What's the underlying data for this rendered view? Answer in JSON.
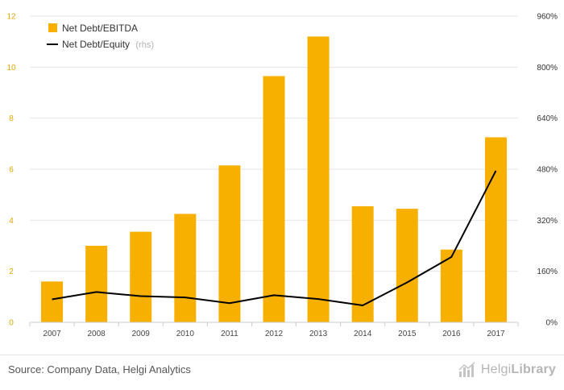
{
  "chart_data": {
    "type": "bar",
    "categories": [
      "2007",
      "2008",
      "2009",
      "2010",
      "2011",
      "2012",
      "2013",
      "2014",
      "2015",
      "2016",
      "2017"
    ],
    "series": [
      {
        "name": "Net Debt/EBITDA",
        "type": "bar",
        "axis": "left",
        "color": "#f7b000",
        "values": [
          1.6,
          3.0,
          3.55,
          4.25,
          6.15,
          9.65,
          11.2,
          4.55,
          4.45,
          2.85,
          7.25
        ]
      },
      {
        "name": "Net Debt/Equity",
        "type": "line",
        "axis": "right",
        "color": "#000000",
        "values": [
          72,
          95,
          82,
          78,
          60,
          85,
          73,
          53,
          125,
          205,
          475
        ]
      }
    ],
    "left_axis": {
      "ticks": [
        "0",
        "2",
        "4",
        "6",
        "8",
        "10",
        "12"
      ],
      "ylim": [
        0,
        12
      ]
    },
    "right_axis": {
      "ticks": [
        "0%",
        "160%",
        "320%",
        "480%",
        "640%",
        "800%",
        "960%"
      ],
      "ylim": [
        0,
        960
      ]
    },
    "legend": {
      "position": "top-left",
      "note": "(rhs)"
    },
    "grid": true
  },
  "footer": {
    "source": "Source: Company Data, Helgi Analytics",
    "brand_light": "Helgi",
    "brand_bold": "Library"
  }
}
